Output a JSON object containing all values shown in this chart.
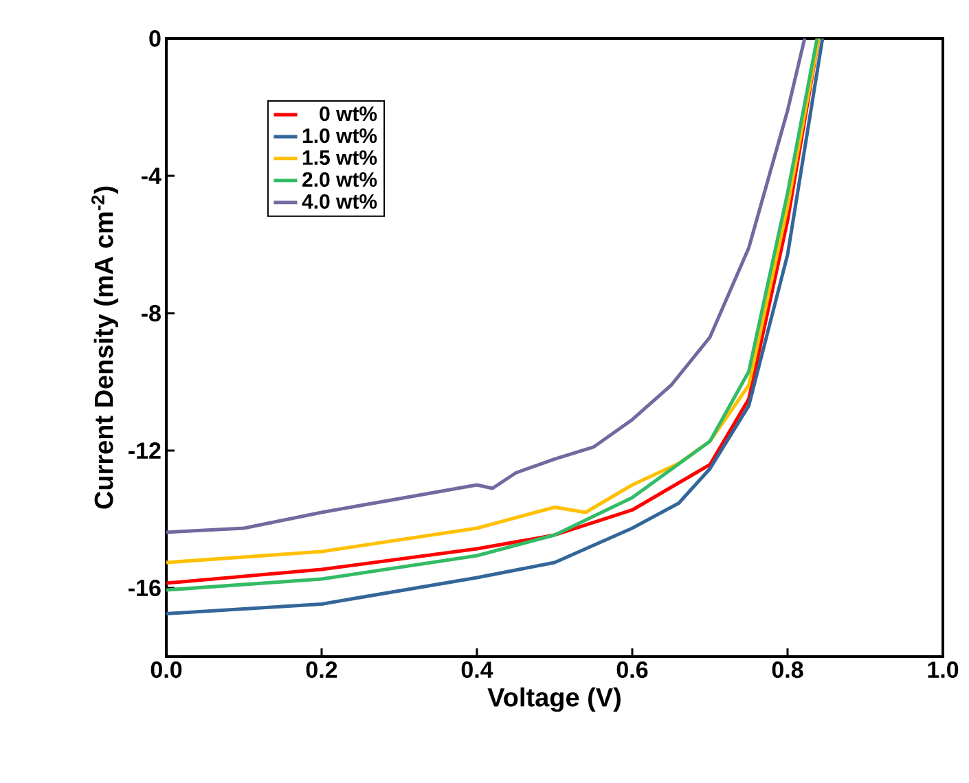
{
  "chart_data": {
    "type": "line",
    "xlabel": "Voltage (V)",
    "ylabel": "Current Density (mA cm$^{-2}$)",
    "xlim": [
      0,
      1.0
    ],
    "ylim": [
      -18,
      0
    ],
    "xticks": [
      {
        "value": 0,
        "label": "0.0"
      },
      0.2,
      0.4,
      0.6,
      0.8,
      {
        "value": 1,
        "label": "1.0"
      }
    ],
    "yticks": [
      -16,
      -12,
      -8,
      -4,
      0
    ],
    "legend": "top left",
    "grid": false,
    "marker": "none",
    "line_style": "solid",
    "series": [
      {
        "name": "0 wt%",
        "color": "#ff0000",
        "x": [
          0,
          0.2,
          0.4,
          0.5,
          0.6,
          0.7,
          0.75,
          0.8,
          0.84
        ],
        "values": [
          -15.86,
          -15.46,
          -14.86,
          -14.46,
          -13.73,
          -12.41,
          -10.5,
          -5.3,
          0
        ]
      },
      {
        "name": "1.0 wt%",
        "color": "#336699",
        "x": [
          0,
          0.2,
          0.4,
          0.5,
          0.6,
          0.66,
          0.7,
          0.75,
          0.8,
          0.845
        ],
        "values": [
          -16.75,
          -16.47,
          -15.7,
          -15.26,
          -14.26,
          -13.53,
          -12.53,
          -10.7,
          -6.3,
          0
        ]
      },
      {
        "name": "1.5 wt%",
        "color": "#ffc000",
        "x": [
          0,
          0.2,
          0.4,
          0.5,
          0.54,
          0.6,
          0.66,
          0.7,
          0.75,
          0.8,
          0.84
        ],
        "values": [
          -15.26,
          -14.94,
          -14.26,
          -13.65,
          -13.8,
          -13.0,
          -12.37,
          -11.73,
          -10.1,
          -4.9,
          0
        ]
      },
      {
        "name": "2.0 wt%",
        "color": "#33bb66",
        "x": [
          0,
          0.2,
          0.4,
          0.5,
          0.6,
          0.7,
          0.75,
          0.8,
          0.838
        ],
        "values": [
          -16.06,
          -15.74,
          -15.06,
          -14.46,
          -13.37,
          -11.73,
          -9.7,
          -4.5,
          0
        ]
      },
      {
        "name": "4.0 wt%",
        "color": "#6f6a9f",
        "x": [
          0,
          0.1,
          0.2,
          0.3,
          0.4,
          0.42,
          0.45,
          0.5,
          0.55,
          0.6,
          0.65,
          0.7,
          0.75,
          0.8,
          0.822
        ],
        "values": [
          -14.38,
          -14.26,
          -13.8,
          -13.4,
          -13.0,
          -13.1,
          -12.65,
          -12.25,
          -11.9,
          -11.1,
          -10.1,
          -8.7,
          -6.1,
          -2.1,
          0
        ]
      }
    ]
  }
}
